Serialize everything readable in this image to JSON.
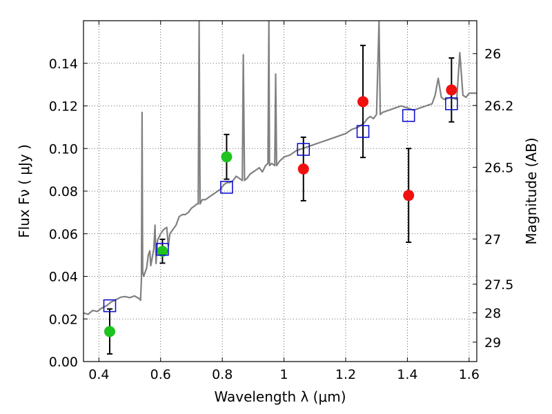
{
  "chart_data": {
    "type": "scatter",
    "xlabel": "Wavelength  λ (μm)",
    "ylabel": "Flux  Fν  ( μJy )",
    "y2label": "Magnitude (AB)",
    "xlim": [
      0.35,
      1.625
    ],
    "ylim": [
      0.0,
      0.16
    ],
    "grid": true,
    "x_ticks": [
      {
        "value": 0.4,
        "label": "0.4"
      },
      {
        "value": 0.6,
        "label": "0.6"
      },
      {
        "value": 0.8,
        "label": "0.8"
      },
      {
        "value": 1.0,
        "label": "1"
      },
      {
        "value": 1.2,
        "label": "1.2"
      },
      {
        "value": 1.4,
        "label": "1.4"
      },
      {
        "value": 1.6,
        "label": "1.6"
      }
    ],
    "y_ticks": [
      {
        "value": 0.0,
        "label": "0.00"
      },
      {
        "value": 0.02,
        "label": "0.02"
      },
      {
        "value": 0.04,
        "label": "0.04"
      },
      {
        "value": 0.06,
        "label": "0.06"
      },
      {
        "value": 0.08,
        "label": "0.08"
      },
      {
        "value": 0.1,
        "label": "0.10"
      },
      {
        "value": 0.12,
        "label": "0.12"
      },
      {
        "value": 0.14,
        "label": "0.14"
      }
    ],
    "y2_ticks": [
      {
        "value": 26,
        "label": "26"
      },
      {
        "value": 26.2,
        "label": "26.2"
      },
      {
        "value": 26.5,
        "label": "26.5"
      },
      {
        "value": 27,
        "label": "27"
      },
      {
        "value": 27.5,
        "label": "27.5"
      },
      {
        "value": 28,
        "label": "28"
      },
      {
        "value": 29,
        "label": "29"
      }
    ],
    "colors": {
      "spectrum": "#808080",
      "green_point": "#1fc31f",
      "red_point": "#f01010",
      "model_square": "#1010d0",
      "error_bar": "#000000",
      "grid": "#333333"
    },
    "series": [
      {
        "kind": "spectrum",
        "points": [
          [
            0.35,
            0.0228
          ],
          [
            0.365,
            0.0222
          ],
          [
            0.38,
            0.024
          ],
          [
            0.395,
            0.0235
          ],
          [
            0.41,
            0.0252
          ],
          [
            0.425,
            0.0262
          ],
          [
            0.44,
            0.028
          ],
          [
            0.455,
            0.029
          ],
          [
            0.47,
            0.0302
          ],
          [
            0.485,
            0.0305
          ],
          [
            0.5,
            0.03
          ],
          [
            0.515,
            0.0308
          ],
          [
            0.53,
            0.0296
          ],
          [
            0.535,
            0.0288
          ],
          [
            0.538,
            0.039
          ],
          [
            0.54,
            0.117
          ],
          [
            0.542,
            0.042
          ],
          [
            0.545,
            0.04
          ],
          [
            0.55,
            0.042
          ],
          [
            0.555,
            0.044
          ],
          [
            0.56,
            0.05
          ],
          [
            0.565,
            0.052
          ],
          [
            0.568,
            0.045
          ],
          [
            0.572,
            0.048
          ],
          [
            0.578,
            0.053
          ],
          [
            0.582,
            0.064
          ],
          [
            0.585,
            0.046
          ],
          [
            0.59,
            0.057
          ],
          [
            0.6,
            0.06
          ],
          [
            0.61,
            0.062
          ],
          [
            0.62,
            0.063
          ],
          [
            0.625,
            0.054
          ],
          [
            0.63,
            0.06
          ],
          [
            0.64,
            0.062
          ],
          [
            0.65,
            0.064
          ],
          [
            0.66,
            0.068
          ],
          [
            0.67,
            0.069
          ],
          [
            0.68,
            0.069
          ],
          [
            0.69,
            0.07
          ],
          [
            0.7,
            0.072
          ],
          [
            0.71,
            0.073
          ],
          [
            0.718,
            0.074
          ],
          [
            0.722,
            0.074
          ],
          [
            0.725,
            0.16
          ],
          [
            0.728,
            0.074
          ],
          [
            0.735,
            0.076
          ],
          [
            0.745,
            0.076
          ],
          [
            0.755,
            0.077
          ],
          [
            0.765,
            0.078
          ],
          [
            0.775,
            0.079
          ],
          [
            0.785,
            0.08
          ],
          [
            0.795,
            0.081
          ],
          [
            0.805,
            0.083
          ],
          [
            0.815,
            0.084
          ],
          [
            0.825,
            0.084
          ],
          [
            0.835,
            0.085
          ],
          [
            0.845,
            0.087
          ],
          [
            0.855,
            0.086
          ],
          [
            0.865,
            0.085
          ],
          [
            0.868,
            0.144
          ],
          [
            0.872,
            0.085
          ],
          [
            0.88,
            0.086
          ],
          [
            0.89,
            0.088
          ],
          [
            0.9,
            0.089
          ],
          [
            0.91,
            0.09
          ],
          [
            0.92,
            0.091
          ],
          [
            0.93,
            0.089
          ],
          [
            0.94,
            0.092
          ],
          [
            0.948,
            0.093
          ],
          [
            0.951,
            0.16
          ],
          [
            0.953,
            0.092
          ],
          [
            0.96,
            0.093
          ],
          [
            0.97,
            0.092
          ],
          [
            0.973,
            0.135
          ],
          [
            0.976,
            0.092
          ],
          [
            0.985,
            0.094
          ],
          [
            1.0,
            0.096
          ],
          [
            1.02,
            0.097
          ],
          [
            1.04,
            0.099
          ],
          [
            1.06,
            0.1
          ],
          [
            1.08,
            0.101
          ],
          [
            1.1,
            0.102
          ],
          [
            1.12,
            0.103
          ],
          [
            1.14,
            0.104
          ],
          [
            1.16,
            0.105
          ],
          [
            1.18,
            0.106
          ],
          [
            1.2,
            0.107
          ],
          [
            1.22,
            0.109
          ],
          [
            1.24,
            0.11
          ],
          [
            1.26,
            0.112
          ],
          [
            1.27,
            0.114
          ],
          [
            1.28,
            0.115
          ],
          [
            1.29,
            0.114
          ],
          [
            1.3,
            0.116
          ],
          [
            1.308,
            0.16
          ],
          [
            1.312,
            0.116
          ],
          [
            1.32,
            0.117
          ],
          [
            1.34,
            0.118
          ],
          [
            1.36,
            0.119
          ],
          [
            1.38,
            0.12
          ],
          [
            1.4,
            0.119
          ],
          [
            1.42,
            0.118
          ],
          [
            1.44,
            0.119
          ],
          [
            1.46,
            0.12
          ],
          [
            1.48,
            0.121
          ],
          [
            1.49,
            0.125
          ],
          [
            1.5,
            0.133
          ],
          [
            1.51,
            0.124
          ],
          [
            1.52,
            0.123
          ],
          [
            1.54,
            0.124
          ],
          [
            1.56,
            0.123
          ],
          [
            1.57,
            0.145
          ],
          [
            1.58,
            0.125
          ],
          [
            1.59,
            0.124
          ],
          [
            1.6,
            0.126
          ],
          [
            1.625,
            0.126
          ]
        ]
      },
      {
        "kind": "observed",
        "color": "green",
        "points": [
          {
            "x": 0.435,
            "y": 0.0141,
            "lo": 0.0036,
            "hi": 0.0247
          },
          {
            "x": 0.606,
            "y": 0.0518,
            "lo": 0.0462,
            "hi": 0.0574
          },
          {
            "x": 0.814,
            "y": 0.0961,
            "lo": 0.0856,
            "hi": 0.1066
          }
        ]
      },
      {
        "kind": "observed",
        "color": "red",
        "points": [
          {
            "x": 1.063,
            "y": 0.0904,
            "lo": 0.0755,
            "hi": 0.1053
          },
          {
            "x": 1.256,
            "y": 0.122,
            "lo": 0.0958,
            "hi": 0.1484
          },
          {
            "x": 1.404,
            "y": 0.078,
            "lo": 0.056,
            "hi": 0.1
          },
          {
            "x": 1.543,
            "y": 0.1275,
            "lo": 0.1125,
            "hi": 0.1425
          }
        ]
      },
      {
        "kind": "model",
        "points": [
          {
            "x": 0.435,
            "y": 0.0262
          },
          {
            "x": 0.606,
            "y": 0.0527
          },
          {
            "x": 0.814,
            "y": 0.0818
          },
          {
            "x": 1.063,
            "y": 0.0996
          },
          {
            "x": 1.256,
            "y": 0.108
          },
          {
            "x": 1.404,
            "y": 0.1155
          },
          {
            "x": 1.543,
            "y": 0.121
          }
        ]
      }
    ]
  }
}
